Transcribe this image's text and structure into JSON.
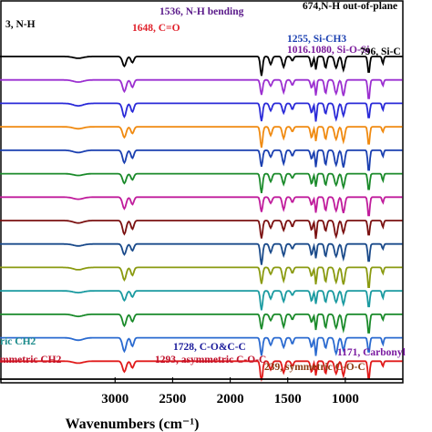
{
  "chart_data": {
    "type": "line",
    "title": "",
    "xlabel": "Wavenumbers (cm⁻¹)",
    "ylabel": "",
    "x_reversed": true,
    "xlim": [
      4000,
      500
    ],
    "x_ticks": [
      3000,
      2500,
      2000,
      1500,
      1000
    ],
    "grid": false,
    "legend": "off-image right",
    "series": [
      {
        "color": "#000000"
      },
      {
        "color": "#9b2fd0"
      },
      {
        "color": "#2a2ad8"
      },
      {
        "color": "#f08a10"
      },
      {
        "color": "#1a3fb0"
      },
      {
        "color": "#1a8a2a"
      },
      {
        "color": "#c01c9c"
      },
      {
        "color": "#7a1010"
      },
      {
        "color": "#1a4a8a"
      },
      {
        "color": "#8a9a10"
      },
      {
        "color": "#1a9aa0"
      },
      {
        "color": "#1a8a2a"
      },
      {
        "color": "#2a6ad0"
      },
      {
        "color": "#e01a1a"
      },
      {
        "color": "#000000"
      }
    ],
    "annotations": [
      {
        "text": "1536, N-H bending",
        "color": "#5a1a8a"
      },
      {
        "text": "674,N-H out-of-plane",
        "color": "#000000"
      },
      {
        "text": "3, N-H",
        "color": "#000000"
      },
      {
        "text": "1648, C=O",
        "color": "#e0202a"
      },
      {
        "text": "1255, Si-CH3",
        "color": "#1a3fb0"
      },
      {
        "text": "1016.1080, Si-O-Si",
        "color": "#7a1a9a"
      },
      {
        "text": "796, Si-C",
        "color": "#000000"
      },
      {
        "text": "ric CH2",
        "color": "#1a8a8a"
      },
      {
        "text": "mmetric CH2",
        "color": "#c0102a"
      },
      {
        "text": "1728, C-O&C-C",
        "color": "#1a1a9a"
      },
      {
        "text": "1293, asymmetric C-O-C",
        "color": "#c0102a"
      },
      {
        "text": "239, symmetric C-O-C",
        "color": "#8a3a10"
      },
      {
        "text": "1171, Carbonyl",
        "color": "#7a1aa0"
      }
    ]
  }
}
